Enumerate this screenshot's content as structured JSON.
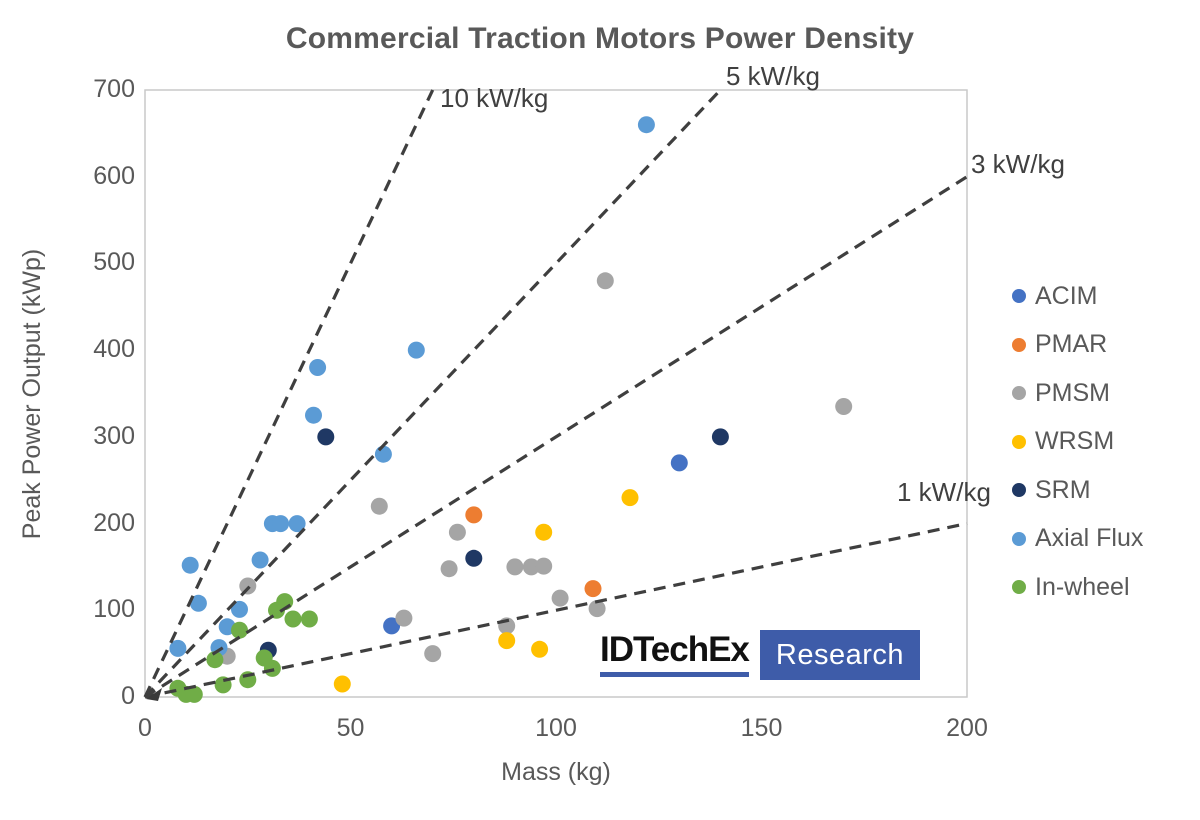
{
  "title": "Commercial Traction Motors Power Density",
  "chart_data": {
    "type": "scatter",
    "title": "Commercial Traction Motors Power Density",
    "xlabel": "Mass (kg)",
    "ylabel": "Peak Power Output (kWp)",
    "xlim": [
      0,
      200
    ],
    "ylim": [
      0,
      700
    ],
    "x_ticks": [
      0,
      50,
      100,
      150,
      200
    ],
    "y_ticks": [
      0,
      100,
      200,
      300,
      400,
      500,
      600,
      700
    ],
    "grid": false,
    "legend_position": "right",
    "series": [
      {
        "name": "ACIM",
        "color": "#4472C4",
        "points": [
          [
            60,
            82
          ],
          [
            130,
            270
          ]
        ]
      },
      {
        "name": "PMAR",
        "color": "#ED7D31",
        "points": [
          [
            80,
            210
          ],
          [
            109,
            125
          ]
        ]
      },
      {
        "name": "PMSM",
        "color": "#A5A5A5",
        "points": [
          [
            20,
            47
          ],
          [
            25,
            128
          ],
          [
            57,
            220
          ],
          [
            63,
            91
          ],
          [
            70,
            50
          ],
          [
            74,
            148
          ],
          [
            76,
            190
          ],
          [
            88,
            82
          ],
          [
            90,
            150
          ],
          [
            94,
            150
          ],
          [
            97,
            151
          ],
          [
            101,
            114
          ],
          [
            110,
            102
          ],
          [
            112,
            480
          ],
          [
            170,
            335
          ]
        ]
      },
      {
        "name": "WRSM",
        "color": "#FFC000",
        "points": [
          [
            48,
            15
          ],
          [
            88,
            65
          ],
          [
            96,
            55
          ],
          [
            97,
            190
          ],
          [
            118,
            230
          ]
        ]
      },
      {
        "name": "SRM",
        "color": "#1F3864",
        "points": [
          [
            30,
            54
          ],
          [
            44,
            300
          ],
          [
            80,
            160
          ],
          [
            140,
            300
          ]
        ]
      },
      {
        "name": "Axial Flux",
        "color": "#5B9BD5",
        "points": [
          [
            8,
            56
          ],
          [
            11,
            152
          ],
          [
            13,
            108
          ],
          [
            18,
            57
          ],
          [
            20,
            81
          ],
          [
            23,
            101
          ],
          [
            28,
            158
          ],
          [
            31,
            200
          ],
          [
            33,
            200
          ],
          [
            37,
            200
          ],
          [
            41,
            325
          ],
          [
            42,
            380
          ],
          [
            58,
            280
          ],
          [
            66,
            400
          ],
          [
            122,
            660
          ]
        ]
      },
      {
        "name": "In-wheel",
        "color": "#70AD47",
        "points": [
          [
            8,
            10
          ],
          [
            10,
            3
          ],
          [
            12,
            3
          ],
          [
            17,
            43
          ],
          [
            19,
            14
          ],
          [
            23,
            77
          ],
          [
            25,
            20
          ],
          [
            29,
            45
          ],
          [
            31,
            33
          ],
          [
            32,
            100
          ],
          [
            34,
            110
          ],
          [
            36,
            90
          ],
          [
            40,
            90
          ]
        ]
      }
    ],
    "reference_lines": [
      {
        "label": "10 kW/kg",
        "slope_kw_per_kg": 10
      },
      {
        "label": "5 kW/kg",
        "slope_kw_per_kg": 5
      },
      {
        "label": "3 kW/kg",
        "slope_kw_per_kg": 3
      },
      {
        "label": "1 kW/kg",
        "slope_kw_per_kg": 1
      }
    ]
  },
  "logo": {
    "brand": "IDTechEx",
    "tag": "Research",
    "underline_color": "#3E5CA9",
    "box_color": "#3E5CA9"
  },
  "style_colors": {
    "text": "#595959",
    "dashed_line": "#3F3F3F",
    "plot_border": "#C9C9C9"
  }
}
